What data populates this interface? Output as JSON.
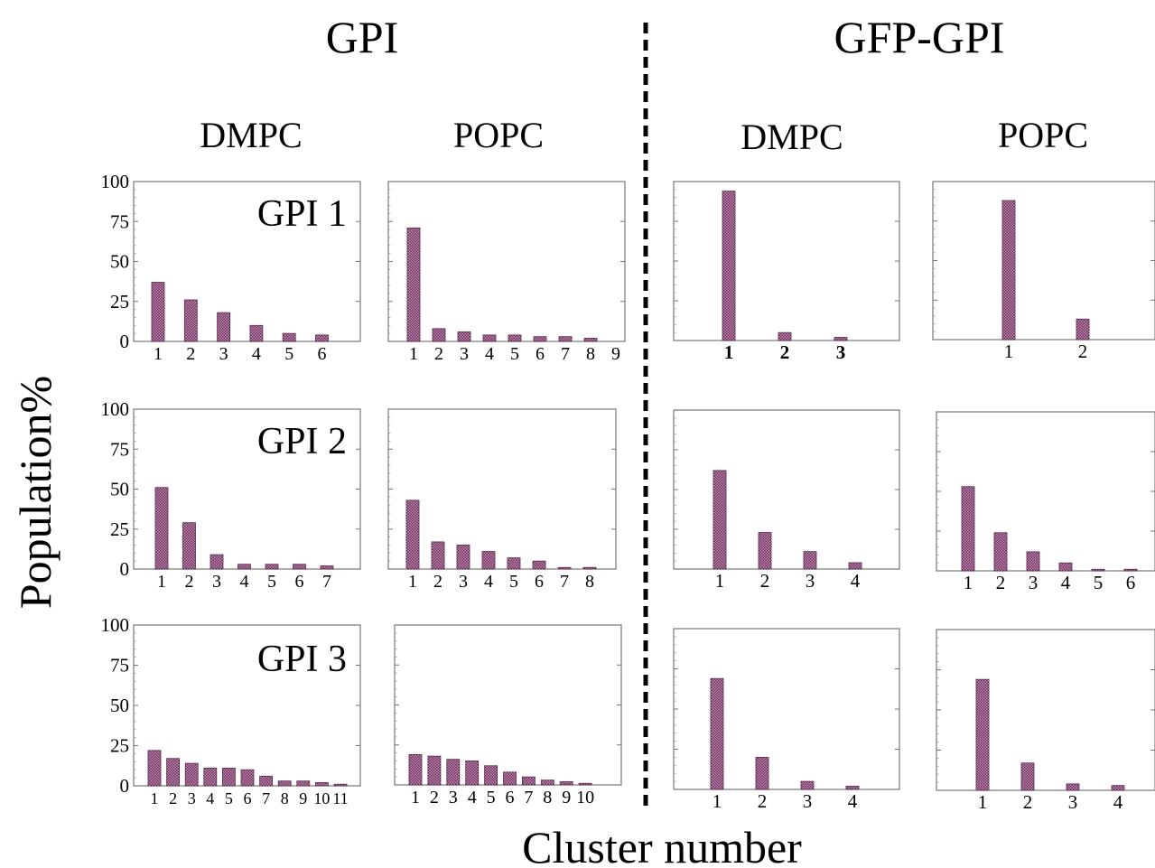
{
  "figure": {
    "group_titles": [
      "GPI",
      "GFP-GPI"
    ],
    "column_titles": [
      "DMPC",
      "POPC",
      "DMPC",
      "POPC"
    ],
    "row_labels": [
      "GPI 1",
      "GPI 2",
      "GPI 3"
    ],
    "ylabel": "Population%",
    "xlabel": "Cluster number",
    "bar_color": "#a56b93",
    "bar_edge": "#5a2a4c"
  },
  "chart_data": [
    {
      "id": "gpi1-dmpc",
      "type": "bar",
      "categories": [
        "1",
        "2",
        "3",
        "4",
        "5",
        "6"
      ],
      "values": [
        37,
        26,
        18,
        10,
        5,
        4
      ],
      "ylim": [
        0,
        100
      ],
      "yticks": [
        "0",
        "25",
        "50",
        "75",
        "100"
      ]
    },
    {
      "id": "gpi1-popc",
      "type": "bar",
      "categories": [
        "1",
        "2",
        "3",
        "4",
        "5",
        "6",
        "7",
        "8",
        "9"
      ],
      "values": [
        71,
        8,
        6,
        4,
        4,
        3,
        3,
        2,
        0
      ],
      "ylim": [
        0,
        100
      ]
    },
    {
      "id": "gfp1-dmpc",
      "type": "bar",
      "categories": [
        "1",
        "2",
        "3"
      ],
      "values": [
        94,
        5,
        2
      ],
      "ylim": [
        0,
        100
      ],
      "bold_ticks": true
    },
    {
      "id": "gfp1-popc",
      "type": "bar",
      "categories": [
        "1",
        "2"
      ],
      "values": [
        88,
        13
      ],
      "ylim": [
        0,
        100
      ]
    },
    {
      "id": "gpi2-dmpc",
      "type": "bar",
      "categories": [
        "1",
        "2",
        "3",
        "4",
        "5",
        "6",
        "7"
      ],
      "values": [
        51,
        29,
        9,
        3,
        3,
        3,
        2
      ],
      "ylim": [
        0,
        100
      ],
      "yticks": [
        "0",
        "25",
        "50",
        "75",
        "100"
      ]
    },
    {
      "id": "gpi2-popc",
      "type": "bar",
      "categories": [
        "1",
        "2",
        "3",
        "4",
        "5",
        "6",
        "7",
        "8"
      ],
      "values": [
        43,
        17,
        15,
        11,
        7,
        5,
        1,
        1
      ],
      "ylim": [
        0,
        100
      ]
    },
    {
      "id": "gfp2-dmpc",
      "type": "bar",
      "categories": [
        "1",
        "2",
        "3",
        "4"
      ],
      "values": [
        62,
        23,
        11,
        4
      ],
      "ylim": [
        0,
        100
      ]
    },
    {
      "id": "gfp2-popc",
      "type": "bar",
      "categories": [
        "1",
        "2",
        "3",
        "4",
        "5",
        "6"
      ],
      "values": [
        53,
        24,
        12,
        5,
        1,
        1
      ],
      "ylim": [
        0,
        100
      ]
    },
    {
      "id": "gpi3-dmpc",
      "type": "bar",
      "categories": [
        "1",
        "2",
        "3",
        "4",
        "5",
        "6",
        "7",
        "8",
        "9",
        "10",
        "11"
      ],
      "values": [
        22,
        17,
        14,
        11,
        11,
        10,
        6,
        3,
        3,
        2,
        1
      ],
      "ylim": [
        0,
        100
      ],
      "yticks": [
        "0",
        "25",
        "50",
        "75",
        "100"
      ]
    },
    {
      "id": "gpi3-popc",
      "type": "bar",
      "categories": [
        "1",
        "2",
        "3",
        "4",
        "5",
        "6",
        "7",
        "8",
        "9",
        "10"
      ],
      "values": [
        19,
        18,
        16,
        15,
        12,
        8,
        5,
        3,
        2,
        1
      ],
      "ylim": [
        0,
        100
      ]
    },
    {
      "id": "gfp3-dmpc",
      "type": "bar",
      "categories": [
        "1",
        "2",
        "3",
        "4"
      ],
      "values": [
        69,
        20,
        5,
        2
      ],
      "ylim": [
        0,
        100
      ]
    },
    {
      "id": "gfp3-popc",
      "type": "bar",
      "categories": [
        "1",
        "2",
        "3",
        "4"
      ],
      "values": [
        69,
        17,
        4,
        3
      ],
      "ylim": [
        0,
        100
      ]
    }
  ]
}
